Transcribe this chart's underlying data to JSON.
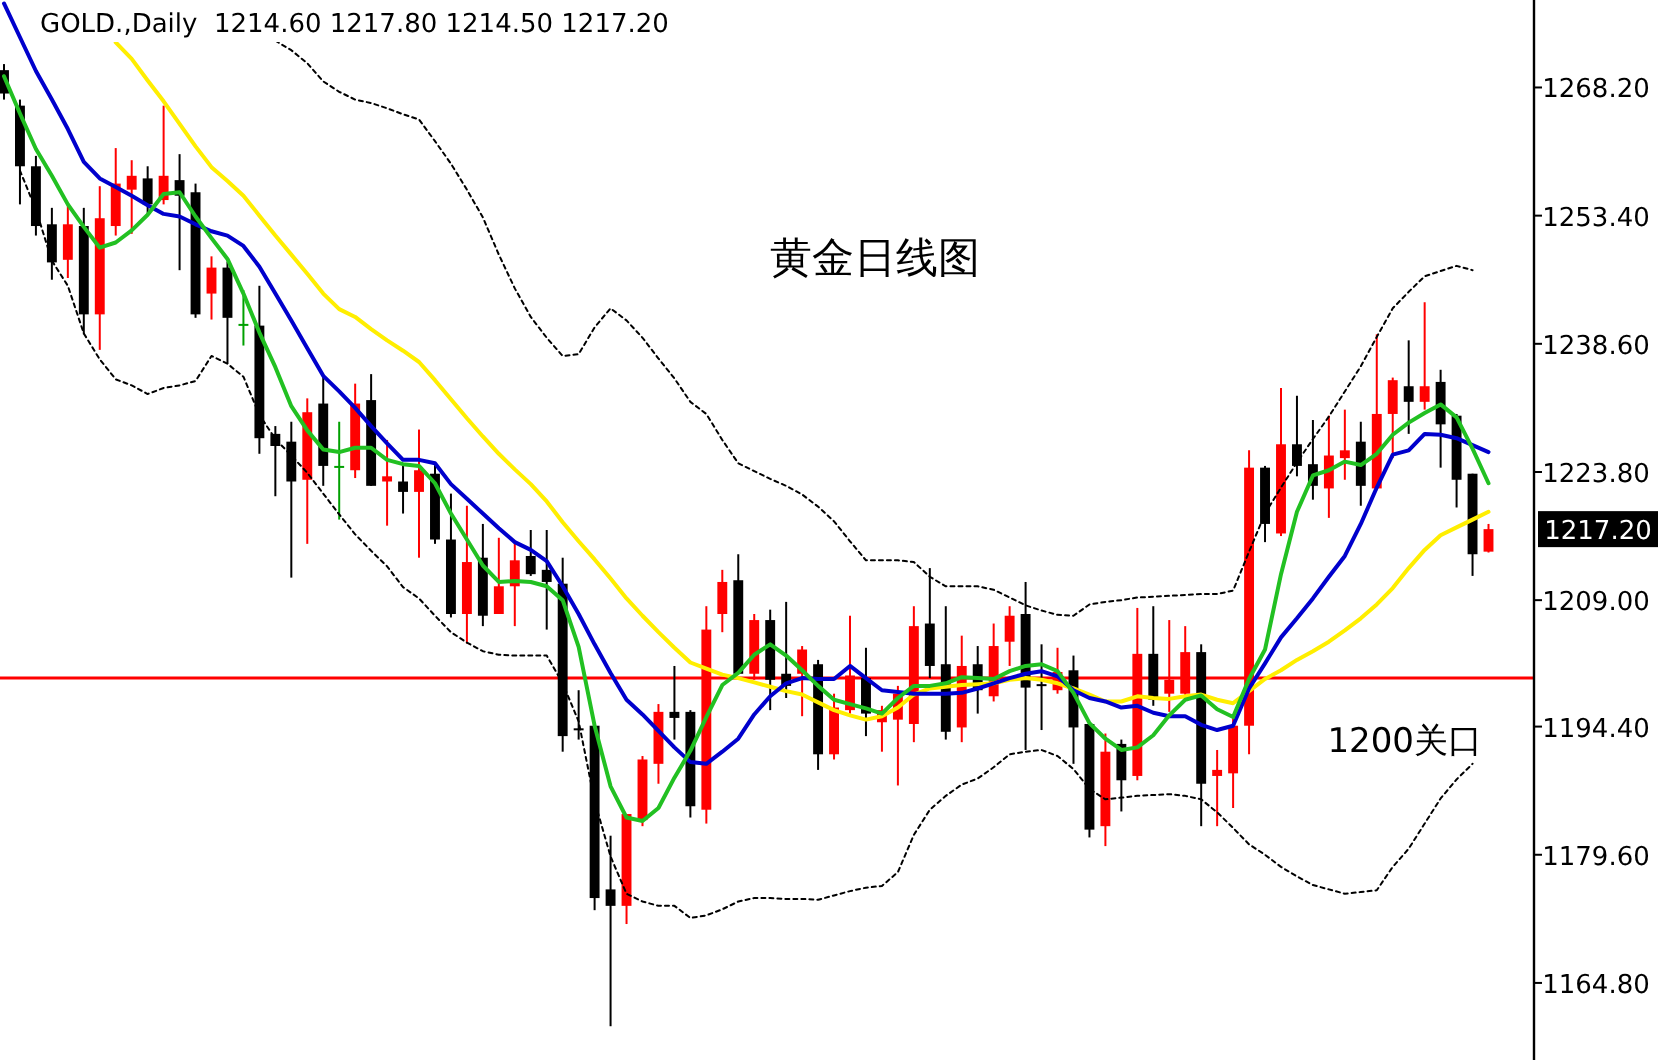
{
  "chart_data": {
    "type": "candlestick",
    "title": "黄金日线图",
    "subtitle": "GOLD.,Daily  1214.60 1217.80 1214.50 1217.20",
    "categories": [
      null,
      null,
      null,
      null,
      null,
      null,
      null,
      null,
      null,
      null,
      null,
      null,
      null,
      null,
      null,
      null,
      null,
      null,
      null,
      null,
      null,
      null,
      null,
      null,
      null,
      null,
      null,
      null,
      null,
      null,
      null,
      null,
      null,
      null,
      null,
      null,
      null,
      null,
      null,
      null,
      null,
      null,
      null,
      null,
      null,
      null,
      null,
      null,
      null,
      null,
      null,
      null,
      null,
      null,
      null,
      null,
      null,
      null,
      null,
      null,
      null,
      null,
      null,
      null,
      null,
      null,
      null,
      null,
      null,
      null,
      null,
      null,
      null,
      null,
      null,
      null,
      null,
      null,
      null,
      null,
      null,
      null,
      null,
      null,
      null,
      null,
      null,
      null,
      null,
      null,
      null,
      null,
      null,
      null
    ],
    "ohlc": [
      [
        1270.2,
        1270.9,
        1266.8,
        1267.5
      ],
      [
        1266.1,
        1266.8,
        1254.7,
        1259.1
      ],
      [
        1259.1,
        1260.3,
        1251.1,
        1252.2
      ],
      [
        1252.4,
        1254.3,
        1246.0,
        1248.0
      ],
      [
        1248.3,
        1254.7,
        1246.2,
        1252.4
      ],
      [
        1252.2,
        1254.3,
        1239.7,
        1242.0
      ],
      [
        1242.0,
        1256.8,
        1237.9,
        1253.1
      ],
      [
        1252.2,
        1261.2,
        1251.1,
        1257.1
      ],
      [
        1256.4,
        1259.8,
        1251.3,
        1258.0
      ],
      [
        1257.7,
        1259.1,
        1253.4,
        1254.7
      ],
      [
        1255.2,
        1266.1,
        1254.7,
        1258.0
      ],
      [
        1257.5,
        1260.5,
        1247.1,
        1255.7
      ],
      [
        1256.1,
        1257.1,
        1241.6,
        1242.0
      ],
      [
        1244.4,
        1248.7,
        1241.4,
        1247.4
      ],
      [
        1247.4,
        1248.1,
        1236.3,
        1241.6
      ],
      [
        1240.9,
        1244.8,
        1238.4,
        1240.9
      ],
      [
        1240.7,
        1245.3,
        1225.9,
        1227.7
      ],
      [
        1228.2,
        1229.1,
        1221.0,
        1226.8
      ],
      [
        1227.3,
        1229.6,
        1211.6,
        1222.7
      ],
      [
        1222.9,
        1232.3,
        1215.5,
        1230.7
      ],
      [
        1231.7,
        1235.1,
        1222.2,
        1224.5
      ],
      [
        1224.5,
        1229.6,
        1218.3,
        1224.5
      ],
      [
        1224.0,
        1234.0,
        1223.1,
        1231.7
      ],
      [
        1232.1,
        1235.1,
        1222.2,
        1222.2
      ],
      [
        1222.7,
        1227.5,
        1217.6,
        1223.3
      ],
      [
        1222.7,
        1224.5,
        1219.0,
        1221.5
      ],
      [
        1221.5,
        1228.7,
        1213.9,
        1224.0
      ],
      [
        1223.6,
        1224.7,
        1215.5,
        1216.0
      ],
      [
        1216.0,
        1221.3,
        1207.0,
        1207.4
      ],
      [
        1207.4,
        1219.9,
        1204.0,
        1213.4
      ],
      [
        1213.9,
        1217.8,
        1206.0,
        1207.2
      ],
      [
        1207.4,
        1216.2,
        1207.4,
        1210.6
      ],
      [
        1210.6,
        1215.5,
        1206.0,
        1213.6
      ],
      [
        1214.1,
        1217.1,
        1211.8,
        1212.0
      ],
      [
        1212.5,
        1217.1,
        1205.6,
        1211.1
      ],
      [
        1210.9,
        1213.9,
        1191.5,
        1193.3
      ],
      [
        1194.2,
        1198.6,
        1192.9,
        1194.0
      ],
      [
        1194.5,
        1194.5,
        1173.2,
        1174.6
      ],
      [
        1175.6,
        1181.8,
        1159.8,
        1173.7
      ],
      [
        1173.7,
        1184.3,
        1171.6,
        1184.3
      ],
      [
        1183.6,
        1191.0,
        1182.9,
        1190.6
      ],
      [
        1190.1,
        1197.0,
        1187.8,
        1196.1
      ],
      [
        1196.1,
        1201.4,
        1192.9,
        1195.4
      ],
      [
        1196.1,
        1196.3,
        1183.9,
        1185.2
      ],
      [
        1184.8,
        1208.3,
        1183.2,
        1205.6
      ],
      [
        1207.4,
        1212.5,
        1205.3,
        1211.1
      ],
      [
        1211.3,
        1214.3,
        1200.5,
        1200.5
      ],
      [
        1200.5,
        1207.4,
        1199.8,
        1206.7
      ],
      [
        1206.7,
        1207.9,
        1196.3,
        1199.8
      ],
      [
        1200.5,
        1208.8,
        1197.7,
        1199.1
      ],
      [
        1200.5,
        1203.7,
        1195.6,
        1203.3
      ],
      [
        1201.6,
        1202.1,
        1189.4,
        1191.2
      ],
      [
        1191.2,
        1198.2,
        1190.6,
        1196.6
      ],
      [
        1196.3,
        1207.2,
        1195.9,
        1200.3
      ],
      [
        1200.0,
        1203.5,
        1193.3,
        1195.9
      ],
      [
        1194.9,
        1196.8,
        1191.5,
        1196.3
      ],
      [
        1195.2,
        1199.1,
        1187.6,
        1198.2
      ],
      [
        1194.7,
        1208.3,
        1192.6,
        1206.0
      ],
      [
        1206.3,
        1212.7,
        1200.0,
        1201.4
      ],
      [
        1201.6,
        1208.3,
        1192.9,
        1193.8
      ],
      [
        1194.3,
        1204.9,
        1192.6,
        1201.4
      ],
      [
        1201.6,
        1203.7,
        1195.9,
        1198.6
      ],
      [
        1197.9,
        1206.3,
        1197.3,
        1203.7
      ],
      [
        1204.2,
        1208.3,
        1201.4,
        1207.2
      ],
      [
        1207.4,
        1211.1,
        1191.7,
        1198.9
      ],
      [
        1199.3,
        1203.9,
        1194.0,
        1199.1
      ],
      [
        1198.6,
        1203.5,
        1198.2,
        1200.7
      ],
      [
        1200.9,
        1202.6,
        1190.1,
        1194.3
      ],
      [
        1194.7,
        1194.9,
        1181.6,
        1182.5
      ],
      [
        1182.9,
        1193.6,
        1180.6,
        1191.5
      ],
      [
        1192.4,
        1192.9,
        1184.6,
        1188.2
      ],
      [
        1188.7,
        1208.1,
        1188.2,
        1202.8
      ],
      [
        1202.8,
        1208.3,
        1196.8,
        1197.5
      ],
      [
        1198.2,
        1206.7,
        1196.1,
        1199.8
      ],
      [
        1198.2,
        1206.0,
        1197.7,
        1203.0
      ],
      [
        1203.0,
        1203.9,
        1182.9,
        1187.8
      ],
      [
        1188.7,
        1191.7,
        1182.9,
        1189.4
      ],
      [
        1189.0,
        1195.4,
        1185.0,
        1194.5
      ],
      [
        1194.5,
        1226.3,
        1191.2,
        1224.3
      ],
      [
        1224.3,
        1224.5,
        1215.7,
        1217.8
      ],
      [
        1216.7,
        1233.5,
        1216.4,
        1227.0
      ],
      [
        1227.0,
        1232.6,
        1223.3,
        1224.5
      ],
      [
        1224.7,
        1229.8,
        1220.6,
        1222.2
      ],
      [
        1221.9,
        1230.3,
        1218.5,
        1225.7
      ],
      [
        1225.4,
        1231.0,
        1222.9,
        1226.3
      ],
      [
        1227.3,
        1229.6,
        1219.9,
        1222.2
      ],
      [
        1221.9,
        1239.7,
        1221.7,
        1230.5
      ],
      [
        1230.5,
        1234.7,
        1225.4,
        1234.4
      ],
      [
        1233.7,
        1239.0,
        1228.2,
        1231.9
      ],
      [
        1231.9,
        1243.4,
        1231.0,
        1233.7
      ],
      [
        1234.2,
        1235.6,
        1224.3,
        1229.3
      ],
      [
        1230.3,
        1230.5,
        1219.7,
        1222.9
      ],
      [
        1223.6,
        1223.6,
        1211.8,
        1214.3
      ],
      [
        1214.6,
        1217.8,
        1214.5,
        1217.2
      ]
    ],
    "colors": [
      "#000000",
      "#000000",
      "#000000",
      "#000000",
      "#ff0000",
      "#000000",
      "#ff0000",
      "#ff0000",
      "#ff0000",
      "#000000",
      "#ff0000",
      "#000000",
      "#000000",
      "#ff0000",
      "#000000",
      "#00a000",
      "#000000",
      "#000000",
      "#000000",
      "#ff0000",
      "#000000",
      "#00a000",
      "#ff0000",
      "#000000",
      "#ff0000",
      "#000000",
      "#ff0000",
      "#000000",
      "#000000",
      "#ff0000",
      "#000000",
      "#ff0000",
      "#ff0000",
      "#000000",
      "#000000",
      "#000000",
      "#000000",
      "#000000",
      "#000000",
      "#ff0000",
      "#ff0000",
      "#ff0000",
      "#000000",
      "#000000",
      "#ff0000",
      "#ff0000",
      "#000000",
      "#ff0000",
      "#000000",
      "#000000",
      "#ff0000",
      "#000000",
      "#ff0000",
      "#ff0000",
      "#000000",
      "#ff0000",
      "#ff0000",
      "#ff0000",
      "#000000",
      "#000000",
      "#ff0000",
      "#000000",
      "#ff0000",
      "#ff0000",
      "#000000",
      "#000000",
      "#ff0000",
      "#000000",
      "#000000",
      "#ff0000",
      "#000000",
      "#ff0000",
      "#000000",
      "#ff0000",
      "#ff0000",
      "#000000",
      "#ff0000",
      "#ff0000",
      "#ff0000",
      "#000000",
      "#ff0000",
      "#000000",
      "#000000",
      "#ff0000",
      "#ff0000",
      "#000000",
      "#ff0000",
      "#ff0000",
      "#000000",
      "#ff0000",
      "#000000",
      "#000000",
      "#000000",
      "#ff0000"
    ],
    "series": [
      {
        "type": "line",
        "color": "#ffee00",
        "values": [
          null,
          null,
          null,
          null,
          null,
          null,
          null,
          1273.4,
          1271.5,
          1269.0,
          1266.6,
          1264.0,
          1261.4,
          1259.0,
          1257.4,
          1255.7,
          1253.4,
          1251.1,
          1248.9,
          1246.7,
          1244.4,
          1242.6,
          1241.7,
          1240.3,
          1239.0,
          1237.8,
          1236.5,
          1234.4,
          1232.2,
          1230.0,
          1227.9,
          1225.9,
          1224.1,
          1222.4,
          1220.4,
          1218.0,
          1215.8,
          1213.7,
          1211.5,
          1209.2,
          1207.2,
          1205.3,
          1203.5,
          1201.8,
          1201.1,
          1200.4,
          1200.0,
          1199.5,
          1199.0,
          1198.5,
          1198.1,
          1197.2,
          1196.3,
          1195.7,
          1195.2,
          1195.6,
          1196.6,
          1198.1,
          1198.8,
          1199.0,
          1199.2,
          1199.3,
          1199.4,
          1199.8,
          1200.0,
          1199.8,
          1199.4,
          1198.8,
          1198.1,
          1197.3,
          1197.3,
          1197.9,
          1197.7,
          1197.6,
          1197.9,
          1198.1,
          1197.5,
          1197.1,
          1198.5,
          1199.9,
          1200.9,
          1202.1,
          1203.1,
          1204.2,
          1205.5,
          1206.9,
          1208.5,
          1210.4,
          1212.7,
          1214.8,
          1216.5,
          1217.4,
          1218.3,
          1219.2
        ]
      },
      {
        "type": "line",
        "color": "#0000cc",
        "values": [
          1277.9,
          1274.0,
          1270.1,
          1266.8,
          1263.4,
          1259.6,
          1257.7,
          1256.7,
          1255.7,
          1254.6,
          1253.6,
          1253.3,
          1252.4,
          1251.6,
          1251.1,
          1249.9,
          1247.5,
          1244.4,
          1241.3,
          1238.1,
          1234.9,
          1233.1,
          1231.2,
          1229.1,
          1227.1,
          1225.2,
          1225.2,
          1224.8,
          1222.4,
          1220.7,
          1219.0,
          1217.3,
          1215.7,
          1214.8,
          1213.5,
          1210.6,
          1207.4,
          1203.9,
          1200.6,
          1197.5,
          1195.8,
          1193.9,
          1192.0,
          1190.3,
          1190.1,
          1191.5,
          1193.0,
          1195.8,
          1197.9,
          1199.4,
          1200.0,
          1199.9,
          1199.9,
          1201.4,
          1200.0,
          1198.6,
          1198.4,
          1198.2,
          1198.2,
          1198.2,
          1198.3,
          1198.8,
          1199.4,
          1200.0,
          1200.5,
          1200.8,
          1200.2,
          1198.6,
          1197.7,
          1197.3,
          1196.6,
          1196.8,
          1196.0,
          1195.6,
          1195.6,
          1194.6,
          1194.0,
          1194.5,
          1198.8,
          1201.7,
          1204.7,
          1206.9,
          1209.2,
          1211.7,
          1214.1,
          1217.8,
          1222.0,
          1225.8,
          1226.3,
          1228.2,
          1228.1,
          1227.7,
          1226.9,
          1226.1
        ]
      },
      {
        "type": "line",
        "color": "#22c022",
        "values": [
          1269.5,
          1265.2,
          1261.1,
          1258.0,
          1254.7,
          1252.1,
          1249.7,
          1250.3,
          1251.7,
          1253.5,
          1255.9,
          1256.1,
          1253.3,
          1250.8,
          1248.4,
          1244.4,
          1239.9,
          1235.9,
          1231.4,
          1228.6,
          1226.4,
          1226.1,
          1226.6,
          1226.6,
          1225.2,
          1224.7,
          1224.5,
          1222.5,
          1219.0,
          1216.0,
          1213.0,
          1211.1,
          1211.2,
          1211.1,
          1210.6,
          1209.0,
          1203.6,
          1194.5,
          1187.5,
          1183.9,
          1183.5,
          1185.0,
          1188.5,
          1191.6,
          1195.5,
          1199.2,
          1200.6,
          1202.7,
          1203.9,
          1202.6,
          1200.9,
          1199.1,
          1197.5,
          1197.0,
          1196.5,
          1195.9,
          1197.7,
          1199.1,
          1199.1,
          1199.4,
          1200.1,
          1200.0,
          1199.9,
          1200.8,
          1201.4,
          1201.6,
          1200.8,
          1198.3,
          1194.8,
          1193.0,
          1191.7,
          1192.0,
          1193.4,
          1195.7,
          1197.5,
          1198.0,
          1196.4,
          1195.5,
          1199.9,
          1203.3,
          1212.0,
          1219.2,
          1223.4,
          1224.0,
          1225.0,
          1224.6,
          1225.9,
          1228.1,
          1229.5,
          1230.6,
          1231.6,
          1230.1,
          1226.5,
          1222.5
        ]
      },
      {
        "type": "line",
        "color": "#000000",
        "line_style": "dotted",
        "values": [
          null,
          null,
          null,
          null,
          null,
          null,
          null,
          null,
          null,
          null,
          null,
          null,
          null,
          null,
          null,
          null,
          null,
          1273.6,
          1272.5,
          1271.0,
          1268.9,
          1267.7,
          1266.8,
          1266.4,
          1265.8,
          1265.1,
          1264.5,
          1262.0,
          1259.4,
          1256.4,
          1253.2,
          1248.9,
          1245.0,
          1241.7,
          1239.3,
          1237.2,
          1237.4,
          1240.5,
          1242.7,
          1241.3,
          1239.3,
          1236.9,
          1234.6,
          1231.9,
          1230.5,
          1227.5,
          1224.8,
          1223.9,
          1223.0,
          1222.2,
          1221.2,
          1219.8,
          1218.1,
          1215.8,
          1213.6,
          1213.6,
          1213.6,
          1213.4,
          1211.7,
          1210.6,
          1210.6,
          1210.6,
          1210.2,
          1209.3,
          1208.4,
          1207.8,
          1207.3,
          1207.2,
          1208.5,
          1208.8,
          1209.0,
          1209.3,
          1209.4,
          1209.5,
          1209.6,
          1209.7,
          1209.7,
          1210.1,
          1214.6,
          1219.0,
          1222.0,
          1224.9,
          1227.6,
          1230.2,
          1233.1,
          1236.0,
          1239.4,
          1242.7,
          1244.6,
          1246.4,
          1247.0,
          1247.6,
          1247.1,
          null
        ]
      },
      {
        "type": "line",
        "color": "#000000",
        "line_style": "dotted",
        "values": [
          null,
          1258.6,
          1254.1,
          1248.2,
          1245.3,
          1239.8,
          1236.8,
          1234.5,
          1233.8,
          1232.8,
          1233.5,
          1233.8,
          1234.3,
          1237.2,
          1236.3,
          1234.8,
          1230.4,
          1227.6,
          1225.7,
          1223.7,
          1221.3,
          1218.9,
          1216.6,
          1214.7,
          1212.9,
          1210.5,
          1209.2,
          1207.2,
          1205.3,
          1204.1,
          1203.1,
          1202.7,
          1202.6,
          1202.6,
          1202.6,
          1199.4,
          1195.0,
          1185.8,
          1179.4,
          1175.1,
          1174.2,
          1173.7,
          1173.7,
          1172.3,
          1172.6,
          1173.3,
          1174.2,
          1174.6,
          1174.6,
          1174.5,
          1174.5,
          1174.4,
          1174.9,
          1175.4,
          1175.8,
          1176.0,
          1177.6,
          1181.9,
          1184.8,
          1186.4,
          1187.7,
          1188.4,
          1189.7,
          1191.2,
          1191.5,
          1191.7,
          1191.0,
          1189.5,
          1187.2,
          1186.0,
          1186.2,
          1186.4,
          1186.5,
          1186.6,
          1186.4,
          1186.0,
          1184.5,
          1182.7,
          1180.8,
          1179.6,
          1178.2,
          1177.1,
          1176.1,
          1175.6,
          1175.1,
          1175.3,
          1175.5,
          1178.2,
          1180.3,
          1183.2,
          1186.1,
          1188.3,
          1190.1,
          null
        ]
      }
    ],
    "ref_lines": [
      {
        "axis": "y",
        "value": 1200,
        "label": "1200关口",
        "color": "#ff0000"
      }
    ],
    "ylim": [
      1155.9,
      1278.3
    ],
    "yticks": [
      {
        "value": 1164.8,
        "label": "1164.80"
      },
      {
        "value": 1179.6,
        "label": "1179.60"
      },
      {
        "value": 1194.4,
        "label": "1194.40"
      },
      {
        "value": 1209.0,
        "label": "1209.00"
      },
      {
        "value": 1223.8,
        "label": "1223.80"
      },
      {
        "value": 1238.6,
        "label": "1238.60"
      },
      {
        "value": 1253.4,
        "label": "1253.40"
      },
      {
        "value": 1268.2,
        "label": "1268.20"
      }
    ],
    "annotations": [
      "1217.20"
    ]
  }
}
